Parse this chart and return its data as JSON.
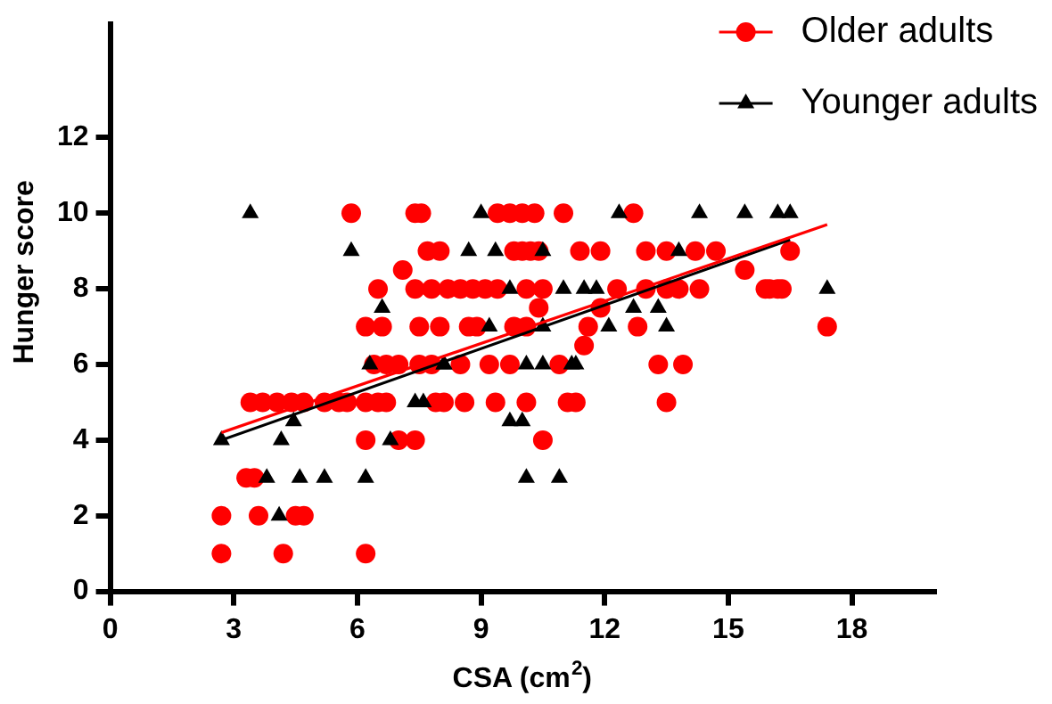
{
  "chart_data": {
    "type": "scatter",
    "xlabel": "CSA (cm$^{2}$)",
    "ylabel": "Hunger score",
    "xlim": [
      0,
      20
    ],
    "xticks": [
      0,
      3,
      6,
      9,
      12,
      15,
      18
    ],
    "ylim": [
      0,
      15
    ],
    "yticks": [
      0,
      2,
      4,
      6,
      8,
      10,
      12
    ],
    "grid": false,
    "legend": "top right",
    "series": [
      {
        "name": "Older adults",
        "color": "#ff0000",
        "marker": "circle",
        "x": [
          5.85,
          7.4,
          7.55,
          7.1,
          7.7,
          6.5,
          7.4,
          7.8,
          8.2,
          6.2,
          6.6,
          7.5,
          6.4,
          6.7,
          7.0,
          7.5,
          3.4,
          3.7,
          4.05,
          4.4,
          4.7,
          5.2,
          5.55,
          5.75,
          6.2,
          6.5,
          6.7,
          7.9,
          6.2,
          7.0,
          7.4,
          3.3,
          3.5,
          2.7,
          3.6,
          4.5,
          4.7,
          2.7,
          4.2,
          6.2,
          9.4,
          9.7,
          10.0,
          10.3,
          11.0,
          12.7,
          8.0,
          9.8,
          10.0,
          10.2,
          10.4,
          11.4,
          11.9,
          13.0,
          13.5,
          14.2,
          14.7,
          8.5,
          8.8,
          9.1,
          9.4,
          10.1,
          10.5,
          12.3,
          13.0,
          13.5,
          13.8,
          14.3,
          15.9,
          16.2,
          16.0,
          16.3,
          10.4,
          11.9,
          15.4,
          8.0,
          8.7,
          8.9,
          9.8,
          10.1,
          11.6,
          12.8,
          11.5,
          7.8,
          8.5,
          9.2,
          9.7,
          10.9,
          13.3,
          13.9,
          8.1,
          8.6,
          9.35,
          10.1,
          11.1,
          11.3,
          13.5,
          10.5,
          16.5,
          17.4
        ],
        "values": [
          10,
          10,
          10,
          8.5,
          9,
          8,
          8,
          8,
          8,
          7,
          7,
          7,
          6,
          6,
          6,
          6,
          5,
          5,
          5,
          5,
          5,
          5,
          5,
          5,
          5,
          5,
          5,
          5,
          4,
          4,
          4,
          3,
          3,
          2,
          2,
          2,
          2,
          1,
          1,
          1,
          10,
          10,
          10,
          10,
          10,
          10,
          9,
          9,
          9,
          9,
          9,
          9,
          9,
          9,
          9,
          9,
          9,
          8,
          8,
          8,
          8,
          8,
          8,
          8,
          8,
          8,
          8,
          8,
          8,
          8,
          8,
          8,
          7.5,
          7.5,
          8.5,
          7,
          7,
          7,
          7,
          7,
          7,
          7,
          6.5,
          6,
          6,
          6,
          6,
          6,
          6,
          6,
          5,
          5,
          5,
          5,
          5,
          5,
          5,
          4,
          9,
          7
        ]
      },
      {
        "name": "Younger adults",
        "color": "#000000",
        "marker": "triangle",
        "x": [
          3.4,
          5.85,
          6.6,
          6.3,
          7.4,
          7.6,
          8.1,
          2.7,
          4.15,
          4.45,
          3.8,
          4.6,
          5.2,
          6.2,
          4.1,
          6.8,
          9.0,
          12.35,
          14.3,
          15.4,
          16.2,
          16.5,
          8.7,
          9.35,
          10.5,
          13.8,
          9.7,
          11.0,
          11.5,
          11.8,
          17.4,
          12.7,
          13.3,
          9.2,
          10.5,
          12.1,
          13.5,
          8.1,
          10.1,
          10.5,
          11.2,
          11.3,
          9.7,
          10.0,
          10.1,
          10.9
        ],
        "values": [
          10,
          9,
          7.5,
          6,
          5,
          5,
          6,
          4,
          4,
          4.5,
          3,
          3,
          3,
          3,
          2,
          4,
          10,
          10,
          10,
          10,
          10,
          10,
          9,
          9,
          9,
          9,
          8,
          8,
          8,
          8,
          8,
          7.5,
          7.5,
          7,
          7,
          7,
          7,
          6,
          6,
          6,
          6,
          6,
          4.5,
          4.5,
          3,
          3
        ]
      },
      {
        "type": "line",
        "color": "#ff0000",
        "x": [
          2.7,
          17.4
        ],
        "values": [
          4.2,
          9.7
        ]
      },
      {
        "type": "line",
        "color": "#000000",
        "x": [
          2.7,
          16.5
        ],
        "values": [
          4.0,
          9.3
        ]
      }
    ]
  }
}
